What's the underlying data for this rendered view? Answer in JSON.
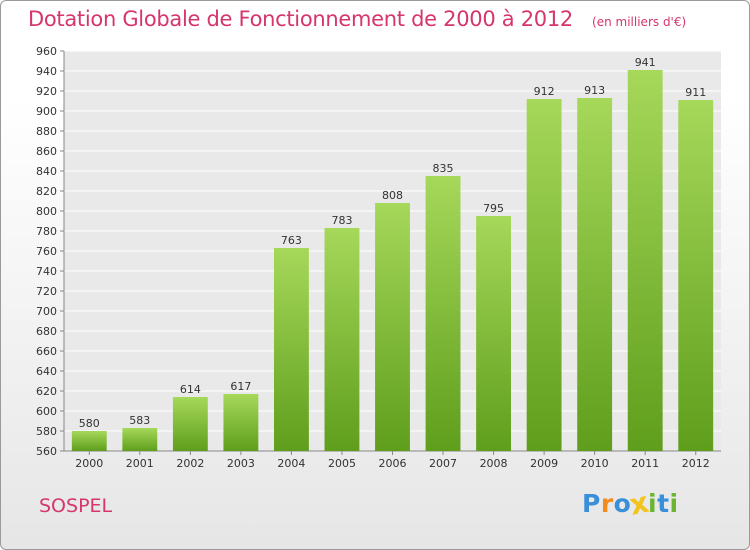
{
  "title": "Dotation Globale de Fonctionnement de 2000 à 2012",
  "unit_note": "(en milliers d'€)",
  "commune": "SOSPEL",
  "logo": {
    "text": "Proxiti",
    "letter_colors": [
      "#3a8fd9",
      "#f28a1e",
      "#3a8fd9",
      "#f2c41e",
      "#6bb533",
      "#3a8fd9",
      "#6bb533"
    ]
  },
  "colors": {
    "title": "#d6366a",
    "bar_light": "#a6d85a",
    "bar_dark": "#5f9e1c",
    "grid": "#ffffff"
  },
  "chart_data": {
    "type": "bar",
    "title": "Dotation Globale de Fonctionnement de 2000 à 2012",
    "subtitle": "(en milliers d'€)",
    "xlabel": "",
    "ylabel": "",
    "categories": [
      "2000",
      "2001",
      "2002",
      "2003",
      "2004",
      "2005",
      "2006",
      "2007",
      "2008",
      "2009",
      "2010",
      "2011",
      "2012"
    ],
    "values": [
      580,
      583,
      614,
      617,
      763,
      783,
      808,
      835,
      795,
      912,
      913,
      941,
      911
    ],
    "ylim": [
      560,
      960
    ],
    "ytick_step": 20,
    "grid": true,
    "data_labels": true
  }
}
